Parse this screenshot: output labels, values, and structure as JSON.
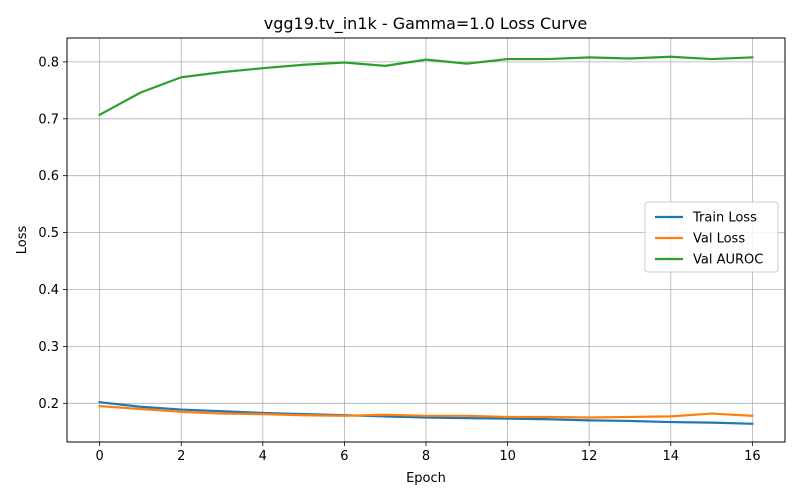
{
  "chart_data": {
    "type": "line",
    "title": "vgg19.tv_in1k - Gamma=1.0 Loss Curve",
    "xlabel": "Epoch",
    "ylabel": "Loss",
    "xlim": [
      -0.8,
      16.8
    ],
    "ylim": [
      0.132,
      0.842
    ],
    "xticks": [
      0,
      2,
      4,
      6,
      8,
      10,
      12,
      14,
      16
    ],
    "yticks": [
      0.2,
      0.3,
      0.4,
      0.5,
      0.6,
      0.7,
      0.8
    ],
    "grid": true,
    "legend_position": "center-right",
    "x": [
      0,
      1,
      2,
      3,
      4,
      5,
      6,
      7,
      8,
      9,
      10,
      11,
      12,
      13,
      14,
      15,
      16
    ],
    "series": [
      {
        "name": "Train Loss",
        "color": "#1f77b4",
        "values": [
          0.202,
          0.194,
          0.189,
          0.186,
          0.183,
          0.181,
          0.179,
          0.177,
          0.175,
          0.174,
          0.173,
          0.172,
          0.17,
          0.169,
          0.167,
          0.166,
          0.164
        ]
      },
      {
        "name": "Val Loss",
        "color": "#ff7f0e",
        "values": [
          0.195,
          0.19,
          0.185,
          0.182,
          0.181,
          0.179,
          0.178,
          0.18,
          0.178,
          0.178,
          0.176,
          0.176,
          0.175,
          0.176,
          0.177,
          0.182,
          0.178
        ]
      },
      {
        "name": "Val AUROC",
        "color": "#2ca02c",
        "values": [
          0.707,
          0.746,
          0.773,
          0.782,
          0.789,
          0.795,
          0.799,
          0.793,
          0.804,
          0.797,
          0.805,
          0.805,
          0.808,
          0.806,
          0.809,
          0.805,
          0.808
        ]
      }
    ]
  }
}
